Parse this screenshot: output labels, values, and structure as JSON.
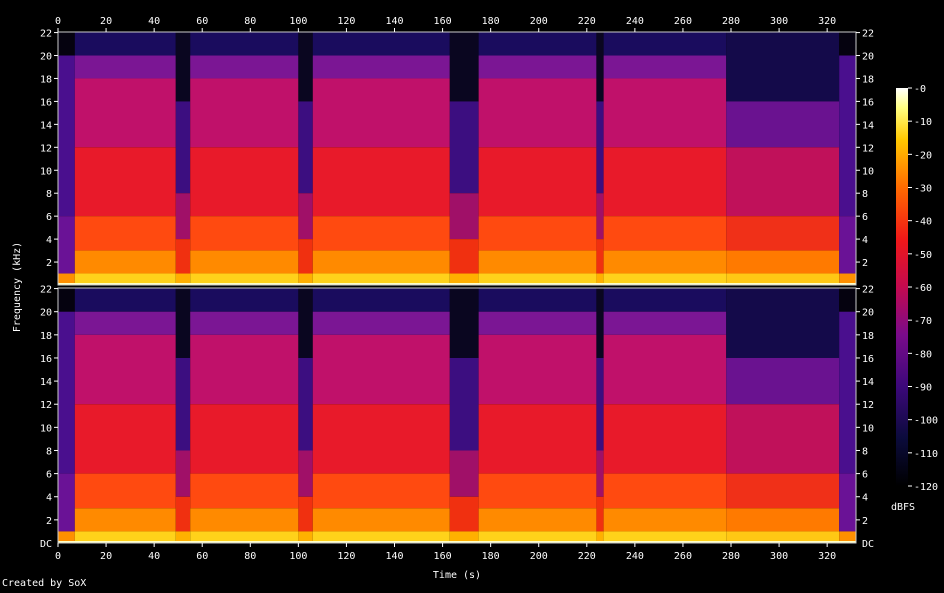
{
  "chart_data": {
    "type": "heatmap",
    "channels": 2,
    "xlabel": "Time (s)",
    "ylabel": "Frequency (kHz)",
    "xlim": [
      0,
      332
    ],
    "ylim_khz": [
      0,
      22.05
    ],
    "x_ticks": [
      "0",
      "20",
      "40",
      "60",
      "80",
      "100",
      "120",
      "140",
      "160",
      "180",
      "200",
      "220",
      "240",
      "260",
      "280",
      "300",
      "320"
    ],
    "x_tick_values": [
      0,
      20,
      40,
      60,
      80,
      100,
      120,
      140,
      160,
      180,
      200,
      220,
      240,
      260,
      280,
      300,
      320
    ],
    "y_ticks": [
      "2",
      "4",
      "6",
      "8",
      "10",
      "12",
      "14",
      "16",
      "18",
      "20",
      "22"
    ],
    "y_tick_values": [
      2,
      4,
      6,
      8,
      10,
      12,
      14,
      16,
      18,
      20,
      22
    ],
    "y_bottom_label": "DC",
    "colorbar": {
      "label": "dBFS",
      "ticks": [
        "-0",
        "-10",
        "-20",
        "-30",
        "-40",
        "-50",
        "-60",
        "-70",
        "-80",
        "-90",
        "-100",
        "-110",
        "-120"
      ],
      "tick_values": [
        0,
        -10,
        -20,
        -30,
        -40,
        -50,
        -60,
        -70,
        -80,
        -90,
        -100,
        -110,
        -120
      ],
      "range": [
        -120,
        0
      ]
    },
    "segments_s": [
      {
        "start": 0,
        "end": 7,
        "level": "quiet-intro"
      },
      {
        "start": 7,
        "end": 49,
        "level": "loud"
      },
      {
        "start": 49,
        "end": 55,
        "level": "gap"
      },
      {
        "start": 55,
        "end": 100,
        "level": "loud"
      },
      {
        "start": 100,
        "end": 106,
        "level": "gap"
      },
      {
        "start": 106,
        "end": 163,
        "level": "loud"
      },
      {
        "start": 163,
        "end": 175,
        "level": "gap"
      },
      {
        "start": 175,
        "end": 224,
        "level": "loud"
      },
      {
        "start": 224,
        "end": 227,
        "level": "gap"
      },
      {
        "start": 227,
        "end": 278,
        "level": "loud"
      },
      {
        "start": 278,
        "end": 325,
        "level": "medium"
      },
      {
        "start": 325,
        "end": 332,
        "level": "quiet-outro"
      }
    ]
  },
  "credit": "Created by SoX",
  "colors": {
    "background": "#000000",
    "text": "#ffffff"
  }
}
